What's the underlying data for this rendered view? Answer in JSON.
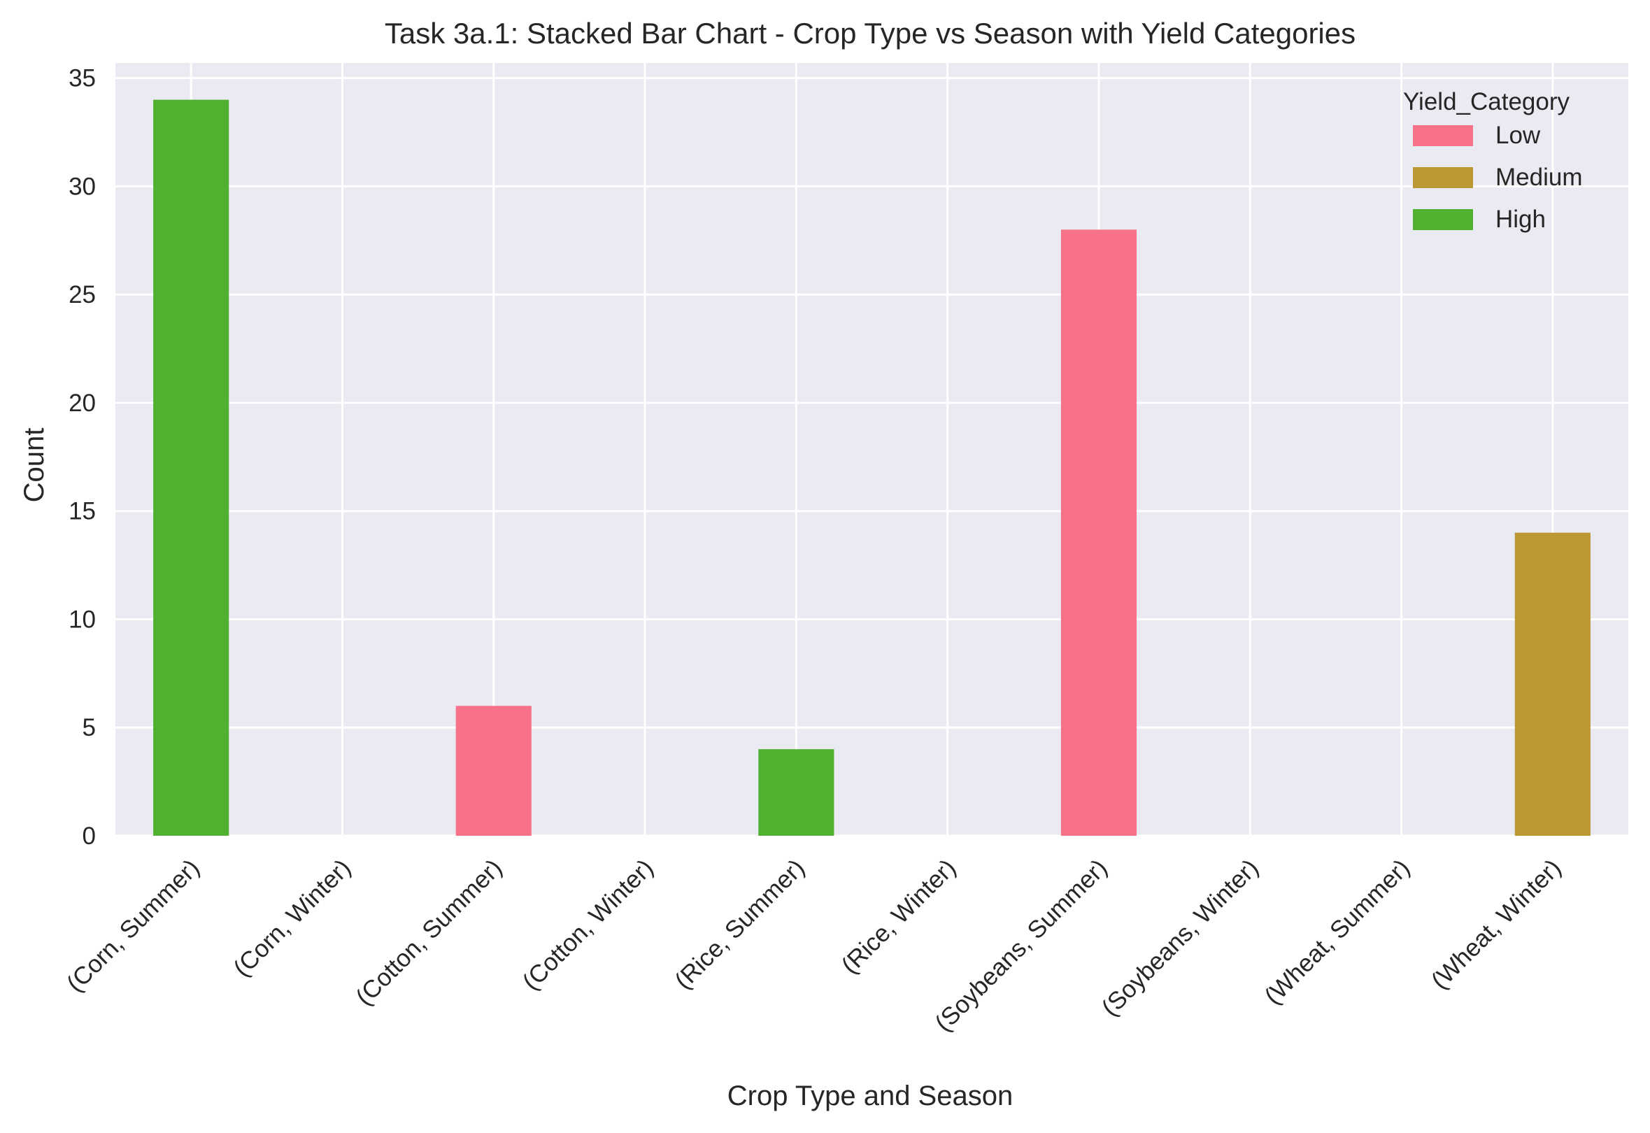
{
  "chart_data": {
    "type": "bar",
    "stacked": true,
    "title": "Task 3a.1: Stacked Bar Chart - Crop Type vs Season with Yield Categories",
    "xlabel": "Crop Type and Season",
    "ylabel": "Count",
    "ylim": [
      0,
      35.7
    ],
    "yticks": [
      0,
      5,
      10,
      15,
      20,
      25,
      30,
      35
    ],
    "grid": true,
    "legend": {
      "title": "Yield_Category",
      "position": "top-right"
    },
    "categories": [
      "(Corn, Summer)",
      "(Corn, Winter)",
      "(Cotton, Summer)",
      "(Cotton, Winter)",
      "(Rice, Summer)",
      "(Rice, Winter)",
      "(Soybeans, Summer)",
      "(Soybeans, Winter)",
      "(Wheat, Summer)",
      "(Wheat, Winter)"
    ],
    "series": [
      {
        "name": "Low",
        "color": "#f77189",
        "values": [
          0,
          0,
          6,
          0,
          0,
          0,
          28,
          0,
          0,
          0
        ]
      },
      {
        "name": "Medium",
        "color": "#bb9832",
        "values": [
          0,
          0,
          0,
          0,
          0,
          0,
          0,
          0,
          0,
          14
        ]
      },
      {
        "name": "High",
        "color": "#50b131",
        "values": [
          34,
          0,
          0,
          0,
          4,
          0,
          0,
          0,
          0,
          0
        ]
      }
    ],
    "colors": {
      "plot_background": "#eaeaf2",
      "grid": "#ffffff",
      "text": "#262626"
    }
  }
}
